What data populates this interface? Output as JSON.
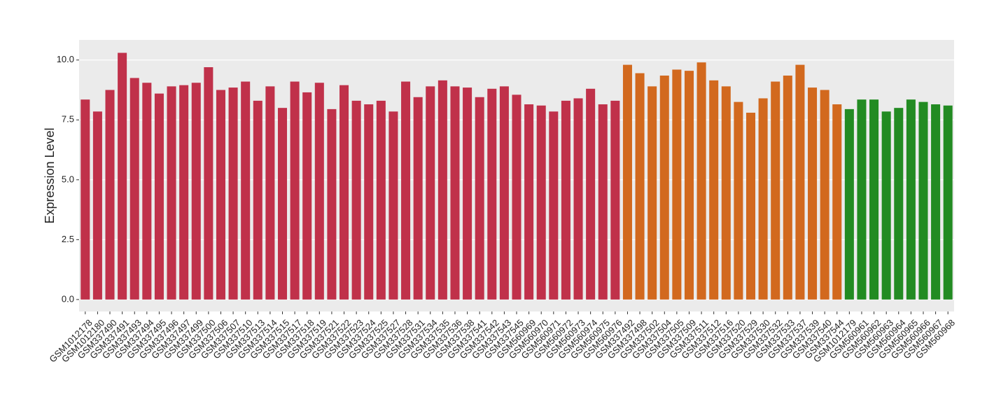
{
  "chart_data": {
    "type": "bar",
    "y_label": "Expression Level",
    "categories": [
      "GSM1012178",
      "GSM1012180",
      "GSM337490",
      "GSM337491",
      "GSM337493",
      "GSM337494",
      "GSM337495",
      "GSM337496",
      "GSM337497",
      "GSM337499",
      "GSM337500",
      "GSM337506",
      "GSM337507",
      "GSM337510",
      "GSM337513",
      "GSM337514",
      "GSM337515",
      "GSM337517",
      "GSM337518",
      "GSM337519",
      "GSM337521",
      "GSM337522",
      "GSM337523",
      "GSM337524",
      "GSM337525",
      "GSM337527",
      "GSM337528",
      "GSM337531",
      "GSM337534",
      "GSM337535",
      "GSM337536",
      "GSM337538",
      "GSM337541",
      "GSM337542",
      "GSM337543",
      "GSM337545",
      "GSM560969",
      "GSM560970",
      "GSM560971",
      "GSM560972",
      "GSM560973",
      "GSM560974",
      "GSM560975",
      "GSM560976",
      "GSM337492",
      "GSM337498",
      "GSM337502",
      "GSM337504",
      "GSM337505",
      "GSM337509",
      "GSM337511",
      "GSM337512",
      "GSM337516",
      "GSM337520",
      "GSM337529",
      "GSM337530",
      "GSM337532",
      "GSM337533",
      "GSM337537",
      "GSM337539",
      "GSM337540",
      "GSM337544",
      "GSM1012179",
      "GSM560961",
      "GSM560962",
      "GSM560963",
      "GSM560964",
      "GSM560965",
      "GSM560966",
      "GSM560967",
      "GSM560968"
    ],
    "values": [
      8.35,
      7.85,
      8.75,
      10.3,
      9.25,
      9.05,
      8.6,
      8.9,
      8.95,
      9.05,
      9.7,
      8.75,
      8.85,
      9.1,
      8.3,
      8.9,
      8.0,
      9.1,
      8.65,
      9.05,
      7.95,
      8.95,
      8.3,
      8.15,
      8.3,
      7.85,
      9.1,
      8.45,
      8.9,
      9.15,
      8.9,
      8.85,
      8.45,
      8.8,
      8.9,
      8.55,
      8.15,
      8.1,
      7.85,
      8.3,
      8.4,
      8.8,
      8.15,
      8.3,
      9.8,
      9.45,
      8.9,
      9.35,
      9.6,
      9.55,
      9.9,
      9.15,
      8.9,
      8.25,
      7.8,
      8.4,
      9.1,
      9.35,
      9.8,
      8.85,
      8.75,
      8.15,
      7.95,
      8.35,
      8.35,
      7.85,
      8.0,
      8.35,
      8.25,
      8.15,
      8.1
    ],
    "colors": [
      "#c0314a",
      "#c0314a",
      "#c0314a",
      "#c0314a",
      "#c0314a",
      "#c0314a",
      "#c0314a",
      "#c0314a",
      "#c0314a",
      "#c0314a",
      "#c0314a",
      "#c0314a",
      "#c0314a",
      "#c0314a",
      "#c0314a",
      "#c0314a",
      "#c0314a",
      "#c0314a",
      "#c0314a",
      "#c0314a",
      "#c0314a",
      "#c0314a",
      "#c0314a",
      "#c0314a",
      "#c0314a",
      "#c0314a",
      "#c0314a",
      "#c0314a",
      "#c0314a",
      "#c0314a",
      "#c0314a",
      "#c0314a",
      "#c0314a",
      "#c0314a",
      "#c0314a",
      "#c0314a",
      "#c0314a",
      "#c0314a",
      "#c0314a",
      "#c0314a",
      "#c0314a",
      "#c0314a",
      "#c0314a",
      "#c0314a",
      "#d2691e",
      "#d2691e",
      "#d2691e",
      "#d2691e",
      "#d2691e",
      "#d2691e",
      "#d2691e",
      "#d2691e",
      "#d2691e",
      "#d2691e",
      "#d2691e",
      "#d2691e",
      "#d2691e",
      "#d2691e",
      "#d2691e",
      "#d2691e",
      "#d2691e",
      "#d2691e",
      "#228b22",
      "#228b22",
      "#228b22",
      "#228b22",
      "#228b22",
      "#228b22",
      "#228b22",
      "#228b22",
      "#228b22"
    ],
    "ylim": [
      -0.5,
      10.84
    ],
    "yticks": [
      {
        "value": 0,
        "label": "0.0"
      },
      {
        "value": 2.5,
        "label": "2.5"
      },
      {
        "value": 5,
        "label": "5.0"
      },
      {
        "value": 7.5,
        "label": "7.5"
      },
      {
        "value": 10,
        "label": "10.0"
      }
    ],
    "grid": true,
    "background": "#ebebeb"
  }
}
